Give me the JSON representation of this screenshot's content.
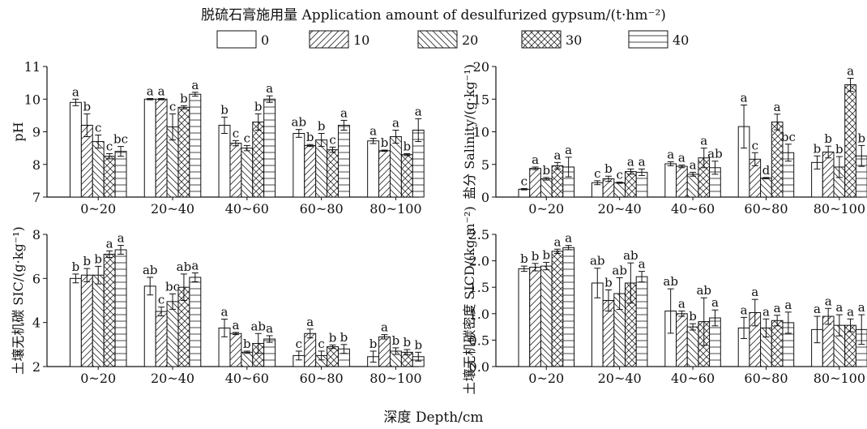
{
  "legend": {
    "title": "脱硫石膏施用量 Application amount of desulfurized gypsum/(t·hm⁻²)",
    "entries": [
      "0",
      "10",
      "20",
      "30",
      "40"
    ]
  },
  "x_axis_label": "深度 Depth/cm",
  "categories": [
    "0~20",
    "20~40",
    "40~60",
    "60~80",
    "80~100"
  ],
  "chart_data": [
    {
      "type": "bar",
      "ylabel": "pH",
      "ylim": [
        7,
        11
      ],
      "yticks": [
        7,
        8,
        9,
        10,
        11
      ],
      "categories": [
        "0~20",
        "20~40",
        "40~60",
        "60~80",
        "80~100"
      ],
      "series": [
        {
          "name": "0",
          "values": [
            9.9,
            10.0,
            9.2,
            8.95,
            8.72
          ],
          "errors": [
            0.1,
            0.02,
            0.25,
            0.12,
            0.08
          ],
          "letters": [
            "a",
            "a",
            "b",
            "ab",
            "a"
          ]
        },
        {
          "name": "10",
          "values": [
            9.2,
            10.0,
            8.65,
            8.58,
            8.42
          ],
          "errors": [
            0.35,
            0.02,
            0.08,
            0.03,
            0.02
          ],
          "letters": [
            "b",
            "a",
            "c",
            "b",
            "b"
          ]
        },
        {
          "name": "20",
          "values": [
            8.7,
            9.15,
            8.5,
            8.75,
            8.85
          ],
          "errors": [
            0.2,
            0.4,
            0.08,
            0.2,
            0.2
          ],
          "letters": [
            "c",
            "c",
            "c",
            "b",
            "a"
          ]
        },
        {
          "name": "30",
          "values": [
            8.25,
            9.75,
            9.3,
            8.45,
            8.3
          ],
          "errors": [
            0.08,
            0.05,
            0.25,
            0.08,
            0.03
          ],
          "letters": [
            "c",
            "b",
            "b",
            "c",
            "b"
          ]
        },
        {
          "name": "40",
          "values": [
            8.4,
            10.15,
            10.0,
            9.2,
            9.05
          ],
          "errors": [
            0.15,
            0.06,
            0.1,
            0.15,
            0.35
          ],
          "letters": [
            "bc",
            "a",
            "a",
            "a",
            "a"
          ]
        }
      ]
    },
    {
      "type": "bar",
      "ylabel": "盐分 Salinity/(g·kg⁻¹)",
      "ylim": [
        0,
        20
      ],
      "yticks": [
        0,
        5,
        10,
        15,
        20
      ],
      "categories": [
        "0~20",
        "20~40",
        "40~60",
        "60~80",
        "80~100"
      ],
      "series": [
        {
          "name": "0",
          "values": [
            1.2,
            2.2,
            5.1,
            10.8,
            5.3
          ],
          "errors": [
            0.1,
            0.3,
            0.3,
            3.3,
            1.0
          ],
          "letters": [
            "c",
            "c",
            "a",
            "a",
            "b"
          ]
        },
        {
          "name": "10",
          "values": [
            4.4,
            2.8,
            4.7,
            5.8,
            6.9
          ],
          "errors": [
            0.2,
            0.4,
            0.2,
            1.0,
            0.9
          ],
          "letters": [
            "a",
            "b",
            "a",
            "c",
            "b"
          ]
        },
        {
          "name": "20",
          "values": [
            2.8,
            2.2,
            3.5,
            2.9,
            4.6
          ],
          "errors": [
            0.2,
            0.1,
            0.3,
            0.1,
            1.6
          ],
          "letters": [
            "b",
            "c",
            "a",
            "d",
            "b"
          ]
        },
        {
          "name": "30",
          "values": [
            4.8,
            3.9,
            6.0,
            11.5,
            17.2
          ],
          "errors": [
            0.5,
            0.4,
            1.5,
            1.2,
            1.0
          ],
          "letters": [
            "a",
            "a",
            "a",
            "a",
            "a"
          ]
        },
        {
          "name": "40",
          "values": [
            4.6,
            3.8,
            4.5,
            6.8,
            6.3
          ],
          "errors": [
            1.5,
            0.5,
            1.0,
            1.3,
            1.6
          ],
          "letters": [
            "a",
            "a",
            "ab",
            "bc",
            "b"
          ]
        }
      ]
    },
    {
      "type": "bar",
      "ylabel": "土壤无机碳 SIC/(g·kg⁻¹)",
      "ylim": [
        2,
        8
      ],
      "yticks": [
        2,
        4,
        6,
        8
      ],
      "categories": [
        "0~20",
        "20~40",
        "40~60",
        "60~80",
        "80~100"
      ],
      "series": [
        {
          "name": "0",
          "values": [
            6.0,
            5.65,
            3.75,
            2.5,
            2.45
          ],
          "errors": [
            0.2,
            0.4,
            0.4,
            0.2,
            0.25
          ],
          "letters": [
            "b",
            "ab",
            "a",
            "c",
            "b"
          ]
        },
        {
          "name": "10",
          "values": [
            6.15,
            4.5,
            3.5,
            3.5,
            3.35
          ],
          "errors": [
            0.3,
            0.2,
            0.05,
            0.2,
            0.1
          ],
          "letters": [
            "b",
            "c",
            "a",
            "a",
            "a"
          ]
        },
        {
          "name": "20",
          "values": [
            6.15,
            4.95,
            2.65,
            2.5,
            2.7
          ],
          "errors": [
            0.4,
            0.35,
            0.05,
            0.2,
            0.15
          ],
          "letters": [
            "b",
            "bc",
            "b",
            "c",
            "b"
          ]
        },
        {
          "name": "30",
          "values": [
            7.1,
            5.6,
            3.05,
            2.9,
            2.65
          ],
          "errors": [
            0.15,
            0.6,
            0.45,
            0.08,
            0.12
          ],
          "letters": [
            "a",
            "ab",
            "ab",
            "b",
            "b"
          ]
        },
        {
          "name": "40",
          "values": [
            7.3,
            6.05,
            3.25,
            2.8,
            2.45
          ],
          "errors": [
            0.2,
            0.2,
            0.15,
            0.2,
            0.2
          ],
          "letters": [
            "a",
            "a",
            "a",
            "b",
            "b"
          ]
        }
      ]
    },
    {
      "type": "bar",
      "ylabel": "土壤无机碳密度 SICD/(kg·m⁻²)",
      "ylim": [
        0,
        2.5
      ],
      "yticks": [
        0.0,
        0.5,
        1.0,
        1.5,
        2.0,
        2.5
      ],
      "categories": [
        "0~20",
        "20~40",
        "40~60",
        "60~80",
        "80~100"
      ],
      "series": [
        {
          "name": "0",
          "values": [
            1.85,
            1.58,
            1.05,
            0.73,
            0.7
          ],
          "errors": [
            0.05,
            0.28,
            0.42,
            0.2,
            0.25
          ],
          "letters": [
            "b",
            "ab",
            "ab",
            "a",
            "a"
          ]
        },
        {
          "name": "10",
          "values": [
            1.88,
            1.25,
            1.0,
            1.02,
            0.95
          ],
          "errors": [
            0.07,
            0.2,
            0.05,
            0.25,
            0.15
          ],
          "letters": [
            "b",
            "b",
            "a",
            "a",
            "a"
          ]
        },
        {
          "name": "20",
          "values": [
            1.9,
            1.38,
            0.75,
            0.73,
            0.78
          ],
          "errors": [
            0.07,
            0.3,
            0.06,
            0.17,
            0.2
          ],
          "letters": [
            "b",
            "ab",
            "b",
            "a",
            "a"
          ]
        },
        {
          "name": "30",
          "values": [
            2.18,
            1.58,
            0.85,
            0.87,
            0.78
          ],
          "errors": [
            0.04,
            0.38,
            0.45,
            0.1,
            0.12
          ],
          "letters": [
            "a",
            "ab",
            "ab",
            "a",
            "a"
          ]
        },
        {
          "name": "40",
          "values": [
            2.25,
            1.7,
            0.92,
            0.83,
            0.7
          ],
          "errors": [
            0.04,
            0.1,
            0.15,
            0.2,
            0.28
          ],
          "letters": [
            "a",
            "a",
            "a",
            "a",
            "a"
          ]
        }
      ]
    }
  ]
}
